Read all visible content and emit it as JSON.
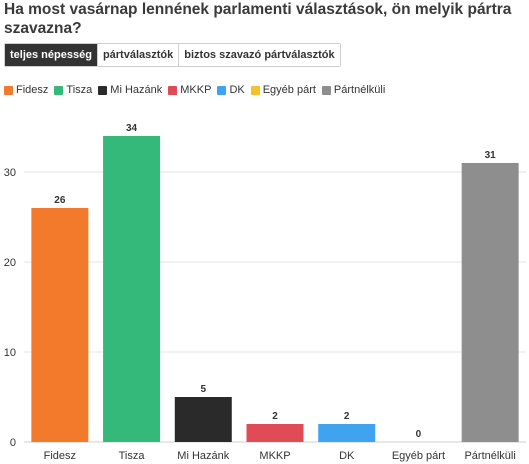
{
  "title": "Ha most vasárnap lennének parlamenti választások, ön melyik pártra szavazna?",
  "tabs": [
    {
      "label": "teljes népesség",
      "active": true
    },
    {
      "label": "pártválasztók",
      "active": false
    },
    {
      "label": "biztos szavazó pártválasztók",
      "active": false
    }
  ],
  "colors": {
    "Fidesz": "#f47a2b",
    "Tisza": "#35b97a",
    "Mi Hazánk": "#2a2a2a",
    "MKKP": "#e14b55",
    "DK": "#3fa3ef",
    "Egyéb párt": "#f3c128",
    "Pártnélküli": "#8e8e8e"
  },
  "chart_data": {
    "type": "bar",
    "categories": [
      "Fidesz",
      "Tisza",
      "Mi Hazánk",
      "MKKP",
      "DK",
      "Egyéb párt",
      "Pártnélküli"
    ],
    "values": [
      26,
      34,
      5,
      2,
      2,
      0,
      31
    ],
    "legend": [
      "Fidesz",
      "Tisza",
      "Mi Hazánk",
      "MKKP",
      "DK",
      "Egyéb párt",
      "Pártnélküli"
    ],
    "yticks": [
      0,
      10,
      20,
      30
    ],
    "ylim": [
      0,
      36
    ],
    "grid": true,
    "legend_position": "top-left"
  }
}
